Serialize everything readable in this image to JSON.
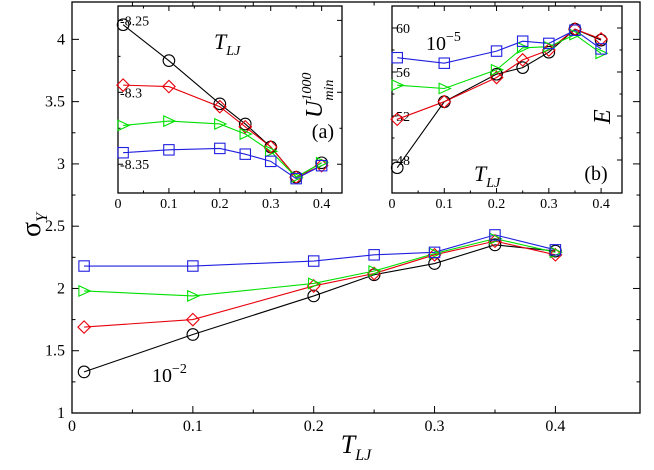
{
  "chart_data": [
    {
      "id": "main",
      "type": "line",
      "xlabel": "T",
      "xlabel_sub": "LJ",
      "ylabel": "σ",
      "ylabel_sub": "Y",
      "xlim": [
        0,
        0.47
      ],
      "ylim": [
        1,
        4.3
      ],
      "xticks": [
        0,
        0.1,
        0.2,
        0.3,
        0.4
      ],
      "xtick_labels": [
        "0",
        "0.1",
        "0.2",
        "0.3",
        "0.4"
      ],
      "yticks": [
        1,
        1.5,
        2,
        2.5,
        3,
        3.5,
        4
      ],
      "ytick_labels": [
        "1",
        "1.5",
        "2",
        "2.5",
        "3",
        "3.5",
        "4"
      ],
      "annotation": {
        "base": "10",
        "exponent": "−2"
      },
      "x": [
        0.01,
        0.1,
        0.2,
        0.25,
        0.3,
        0.35,
        0.4
      ],
      "series": [
        {
          "name": "circle",
          "marker": "circle",
          "color": "#000000",
          "values": [
            1.33,
            1.63,
            1.94,
            2.11,
            2.2,
            2.35,
            2.3
          ]
        },
        {
          "name": "diamond",
          "marker": "diamond",
          "color": "#e8000b",
          "values": [
            1.69,
            1.75,
            2.02,
            2.12,
            2.27,
            2.38,
            2.27
          ]
        },
        {
          "name": "triangle",
          "marker": "triangle-right",
          "color": "#00e000",
          "values": [
            1.98,
            1.94,
            2.04,
            2.14,
            2.28,
            2.4,
            2.29
          ]
        },
        {
          "name": "square",
          "marker": "square",
          "color": "#1f1fe0",
          "values": [
            2.18,
            2.18,
            2.22,
            2.27,
            2.29,
            2.43,
            2.31
          ]
        }
      ]
    },
    {
      "id": "inset-a",
      "type": "line",
      "title": "T",
      "title_sub": "LJ",
      "ylabel": "U",
      "ylabel_sup": "1000",
      "ylabel_sub": "min",
      "panel_label": "(a)",
      "xlim": [
        0,
        0.44
      ],
      "ylim": [
        -8.37,
        -8.24
      ],
      "xticks": [
        0,
        0.1,
        0.2,
        0.3,
        0.4
      ],
      "xtick_labels": [
        "0",
        "0.1",
        "0.2",
        "0.3",
        "0.4"
      ],
      "yticks": [
        -8.35,
        -8.3,
        -8.25
      ],
      "ytick_labels": [
        "-8.35",
        "-8.3",
        "-8.25"
      ],
      "x": [
        0.01,
        0.1,
        0.2,
        0.25,
        0.3,
        0.35,
        0.4
      ],
      "series": [
        {
          "name": "circle",
          "marker": "circle",
          "color": "#000000",
          "values": [
            -8.253,
            -8.278,
            -8.308,
            -8.322,
            -8.338,
            -8.359,
            -8.349
          ]
        },
        {
          "name": "diamond",
          "marker": "diamond",
          "color": "#e8000b",
          "values": [
            -8.295,
            -8.296,
            -8.31,
            -8.324,
            -8.338,
            -8.359,
            -8.351
          ]
        },
        {
          "name": "triangle",
          "marker": "triangle-right",
          "color": "#00e000",
          "values": [
            -8.323,
            -8.32,
            -8.322,
            -8.329,
            -8.341,
            -8.359,
            -8.349
          ]
        },
        {
          "name": "square",
          "marker": "square",
          "color": "#1f1fe0",
          "values": [
            -8.342,
            -8.34,
            -8.339,
            -8.343,
            -8.348,
            -8.36,
            -8.351
          ]
        }
      ]
    },
    {
      "id": "inset-b",
      "type": "line",
      "xlabel": "T",
      "xlabel_sub": "LJ",
      "ylabel": "E",
      "panel_label": "(b)",
      "annotation": {
        "base": "10",
        "exponent": "−5"
      },
      "xlim": [
        0,
        0.44
      ],
      "ylim": [
        45,
        62
      ],
      "xticks": [
        0,
        0.1,
        0.2,
        0.3,
        0.4
      ],
      "xtick_labels": [
        "0",
        "0.1",
        "0.2",
        "0.3",
        "0.4"
      ],
      "yticks": [
        48,
        52,
        56,
        60
      ],
      "ytick_labels": [
        "48",
        "52",
        "56",
        "60"
      ],
      "x": [
        0.01,
        0.1,
        0.2,
        0.25,
        0.3,
        0.35,
        0.4
      ],
      "series": [
        {
          "name": "circle",
          "marker": "circle",
          "color": "#000000",
          "values": [
            47.3,
            53.3,
            55.8,
            56.4,
            57.8,
            59.9,
            58.9
          ]
        },
        {
          "name": "diamond",
          "marker": "diamond",
          "color": "#e8000b",
          "values": [
            51.7,
            53.3,
            55.5,
            57.1,
            58.0,
            59.9,
            59.0
          ]
        },
        {
          "name": "triangle",
          "marker": "triangle-right",
          "color": "#00e000",
          "values": [
            54.8,
            54.5,
            56.2,
            58.2,
            58.3,
            59.4,
            57.7
          ]
        },
        {
          "name": "square",
          "marker": "square",
          "color": "#1f1fe0",
          "values": [
            57.3,
            56.8,
            57.9,
            58.8,
            58.6,
            59.8,
            58.1
          ]
        }
      ]
    }
  ]
}
